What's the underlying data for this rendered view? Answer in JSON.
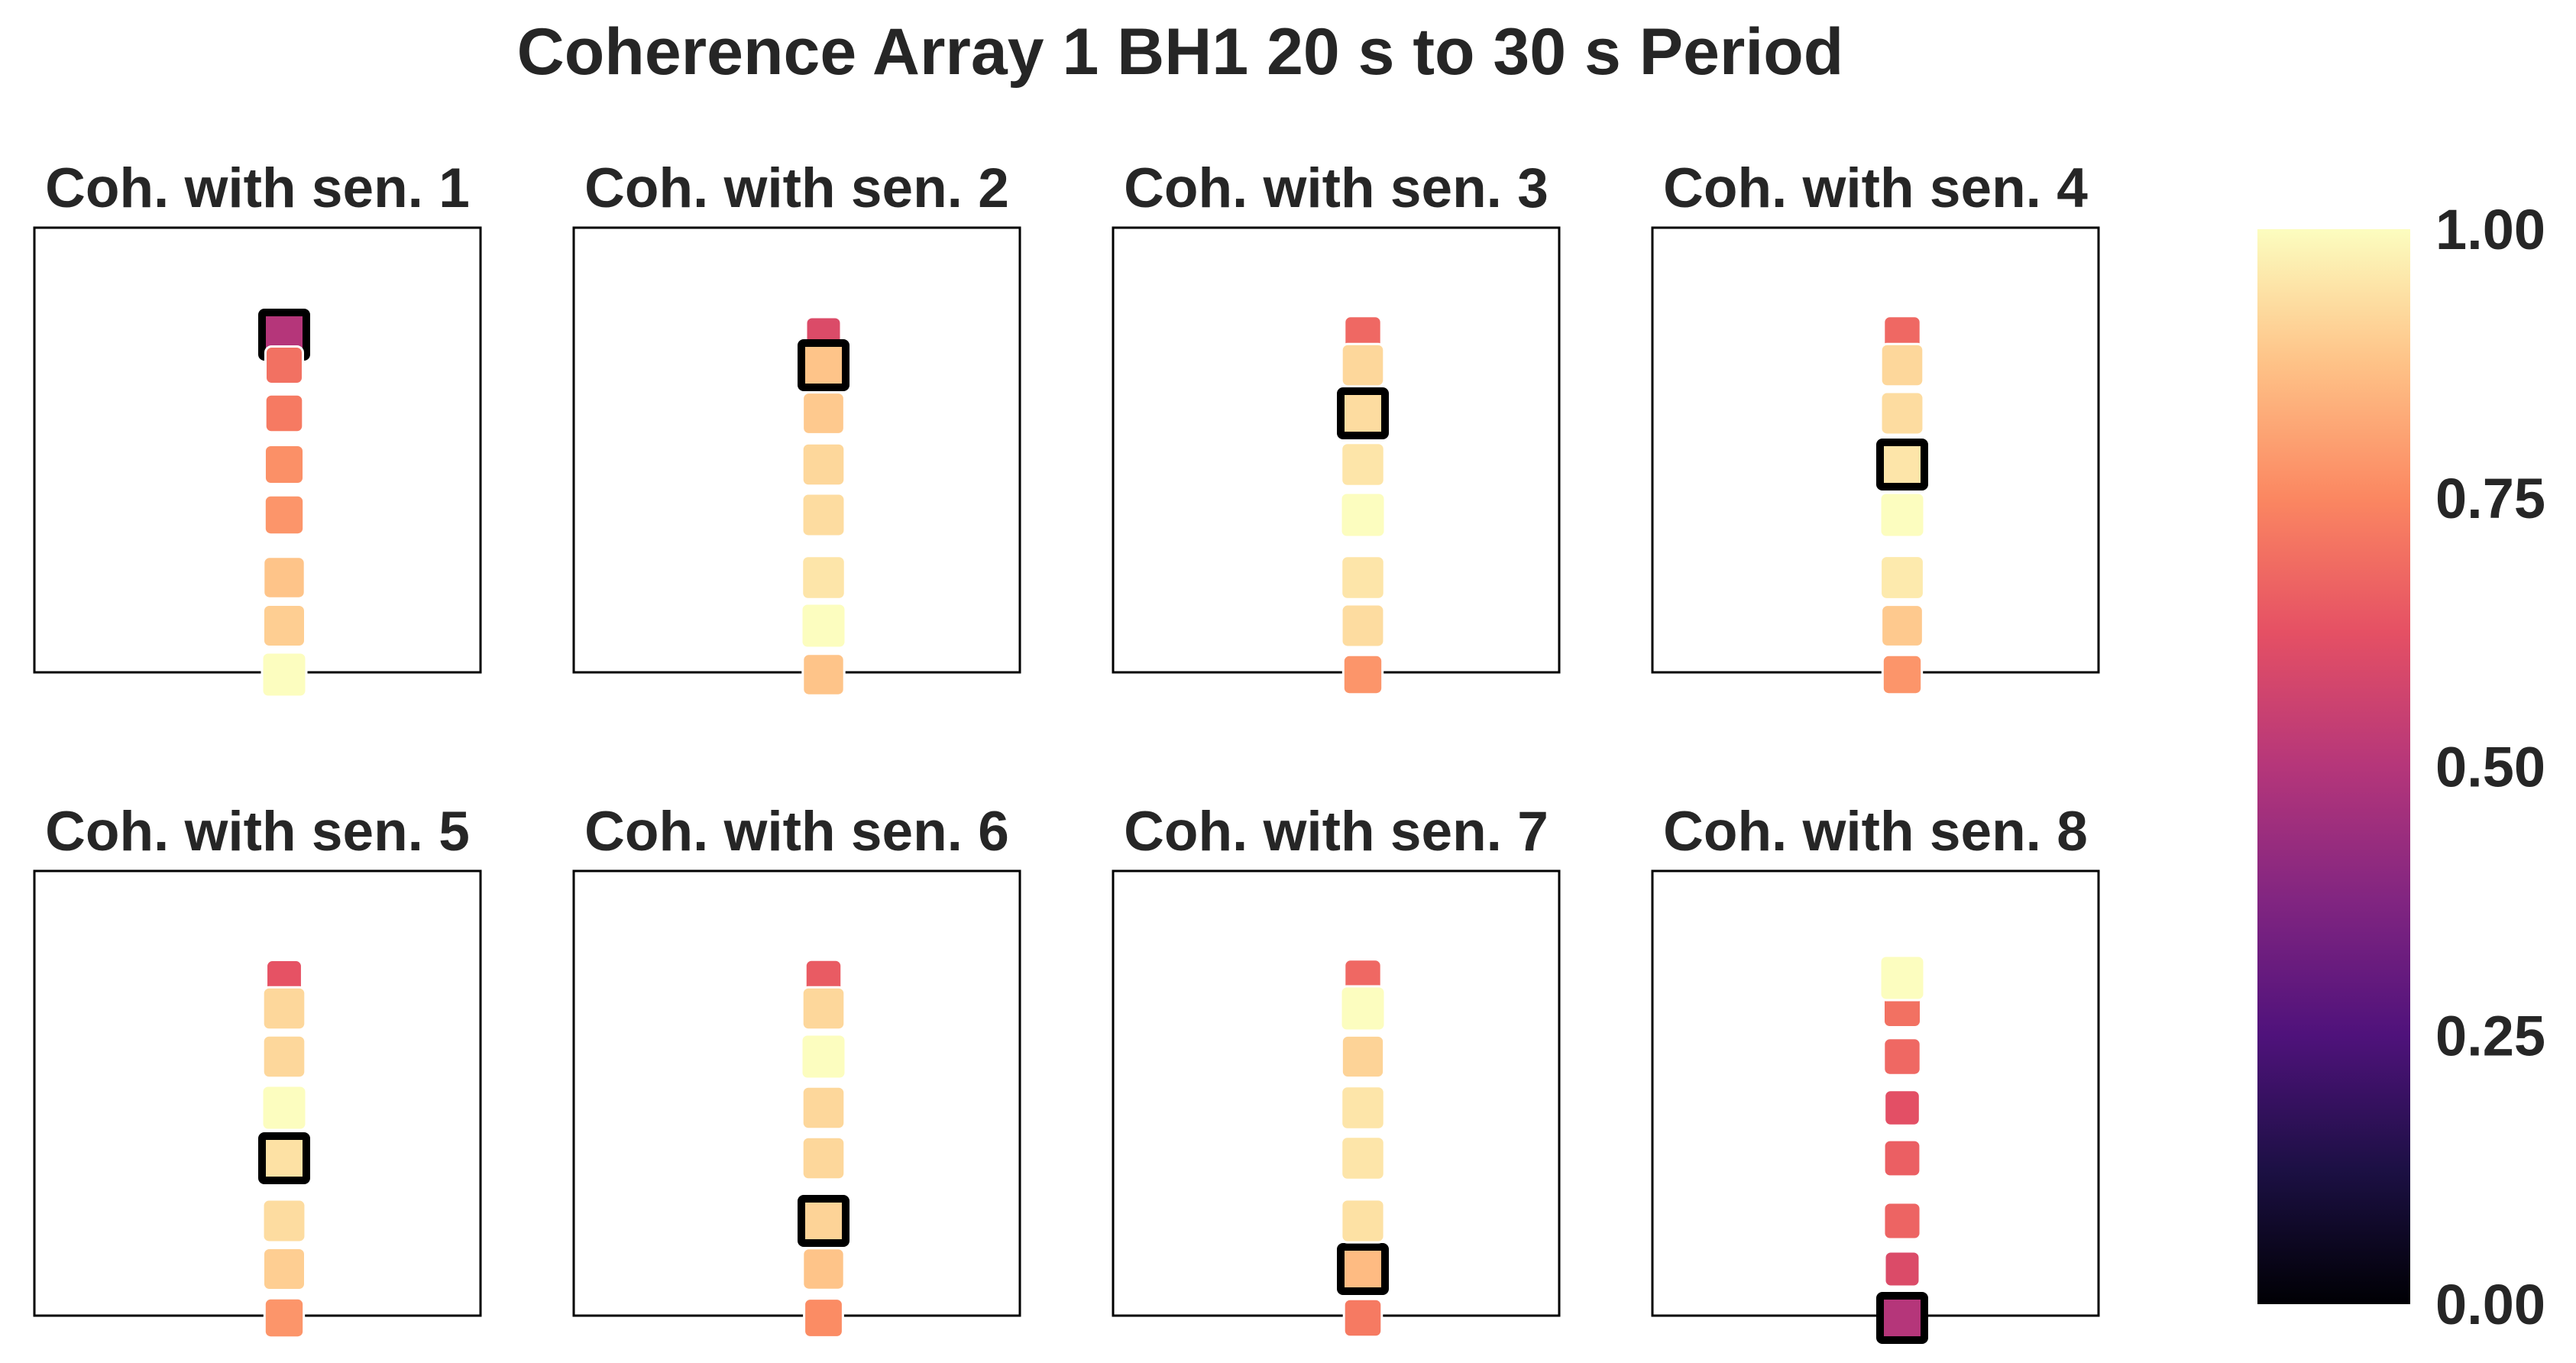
{
  "chart_data": {
    "type": "heatmap",
    "title": "Coherence Array 1 BH1 20 s to 30 s Period",
    "colormap": "magma",
    "clim": [
      0,
      1
    ],
    "colorbar": {
      "ticks": [
        "0.00",
        "0.25",
        "0.50",
        "0.75",
        "1.00"
      ],
      "tick_values": [
        0,
        0.25,
        0.5,
        0.75,
        1
      ]
    },
    "sensor_count": 8,
    "panels": [
      {
        "title": "Coh. with sen. 1",
        "reference_sensor": 1,
        "coherence": [
          0.5,
          0.7,
          0.72,
          0.77,
          0.78,
          0.88,
          0.9,
          1.0
        ]
      },
      {
        "title": "Coh. with sen. 2",
        "reference_sensor": 2,
        "coherence": [
          0.6,
          0.88,
          0.89,
          0.92,
          0.93,
          0.95,
          1.0,
          0.88
        ]
      },
      {
        "title": "Coh. with sen. 3",
        "reference_sensor": 3,
        "coherence": [
          0.68,
          0.92,
          0.93,
          0.95,
          1.0,
          0.95,
          0.93,
          0.78
        ]
      },
      {
        "title": "Coh. with sen. 4",
        "reference_sensor": 4,
        "coherence": [
          0.68,
          0.92,
          0.93,
          0.95,
          1.0,
          0.96,
          0.89,
          0.78
        ]
      },
      {
        "title": "Coh. with sen. 5",
        "reference_sensor": 5,
        "coherence": [
          0.63,
          0.92,
          0.92,
          1.0,
          0.94,
          0.93,
          0.9,
          0.78
        ]
      },
      {
        "title": "Coh. with sen. 6",
        "reference_sensor": 6,
        "coherence": [
          0.65,
          0.92,
          1.0,
          0.92,
          0.92,
          0.91,
          0.88,
          0.76
        ]
      },
      {
        "title": "Coh. with sen. 7",
        "reference_sensor": 7,
        "coherence": [
          0.68,
          1.0,
          0.91,
          0.95,
          0.95,
          0.94,
          0.86,
          0.72
        ]
      },
      {
        "title": "Coh. with sen. 8",
        "reference_sensor": 8,
        "coherence": [
          1.0,
          0.7,
          0.68,
          0.62,
          0.66,
          0.67,
          0.6,
          0.5
        ]
      }
    ]
  }
}
